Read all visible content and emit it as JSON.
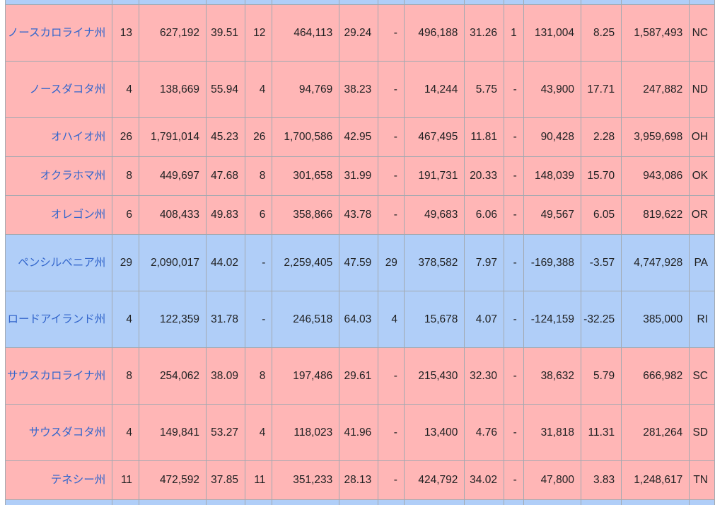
{
  "colors": {
    "republican_row_pink": "#ffb6b6",
    "democratic_row_blue": "#b0cef8",
    "grid_border": "#a2a9b1",
    "state_link": "#3366cc",
    "number_text": "#202122",
    "page_background": "#ffffff"
  },
  "table": {
    "top_partial_row": {
      "row_color": "blue"
    },
    "bottom_partial_row": {
      "row_color": "blue"
    },
    "rows": [
      {
        "state": "ノースカロライナ州",
        "abbr": "NC",
        "row_color": "pink",
        "values": [
          "13",
          "627,192",
          "39.51",
          "12",
          "464,113",
          "29.24",
          "-",
          "496,188",
          "31.26",
          "1",
          "131,004",
          "8.25",
          "1,587,493"
        ]
      },
      {
        "state": "ノースダコタ州",
        "abbr": "ND",
        "row_color": "pink",
        "values": [
          "4",
          "138,669",
          "55.94",
          "4",
          "94,769",
          "38.23",
          "-",
          "14,244",
          "5.75",
          "-",
          "43,900",
          "17.71",
          "247,882"
        ]
      },
      {
        "state": "オハイオ州",
        "abbr": "OH",
        "row_color": "pink",
        "values": [
          "26",
          "1,791,014",
          "45.23",
          "26",
          "1,700,586",
          "42.95",
          "-",
          "467,495",
          "11.81",
          "-",
          "90,428",
          "2.28",
          "3,959,698"
        ]
      },
      {
        "state": "オクラホマ州",
        "abbr": "OK",
        "row_color": "pink",
        "values": [
          "8",
          "449,697",
          "47.68",
          "8",
          "301,658",
          "31.99",
          "-",
          "191,731",
          "20.33",
          "-",
          "148,039",
          "15.70",
          "943,086"
        ]
      },
      {
        "state": "オレゴン州",
        "abbr": "OR",
        "row_color": "pink",
        "values": [
          "6",
          "408,433",
          "49.83",
          "6",
          "358,866",
          "43.78",
          "-",
          "49,683",
          "6.06",
          "-",
          "49,567",
          "6.05",
          "819,622"
        ]
      },
      {
        "state": "ペンシルベニア州",
        "abbr": "PA",
        "row_color": "blue",
        "values": [
          "29",
          "2,090,017",
          "44.02",
          "-",
          "2,259,405",
          "47.59",
          "29",
          "378,582",
          "7.97",
          "-",
          "-169,388",
          "-3.57",
          "4,747,928"
        ]
      },
      {
        "state": "ロードアイランド州",
        "abbr": "RI",
        "row_color": "blue",
        "values": [
          "4",
          "122,359",
          "31.78",
          "-",
          "246,518",
          "64.03",
          "4",
          "15,678",
          "4.07",
          "-",
          "-124,159",
          "-32.25",
          "385,000"
        ]
      },
      {
        "state": "サウスカロライナ州",
        "abbr": "SC",
        "row_color": "pink",
        "values": [
          "8",
          "254,062",
          "38.09",
          "8",
          "197,486",
          "29.61",
          "-",
          "215,430",
          "32.30",
          "-",
          "38,632",
          "5.79",
          "666,982"
        ]
      },
      {
        "state": "サウスダコタ州",
        "abbr": "SD",
        "row_color": "pink",
        "values": [
          "4",
          "149,841",
          "53.27",
          "4",
          "118,023",
          "41.96",
          "-",
          "13,400",
          "4.76",
          "-",
          "31,818",
          "11.31",
          "281,264"
        ]
      },
      {
        "state": "テネシー州",
        "abbr": "TN",
        "row_color": "pink",
        "values": [
          "11",
          "472,592",
          "37.85",
          "11",
          "351,233",
          "28.13",
          "-",
          "424,792",
          "34.02",
          "-",
          "47,800",
          "3.83",
          "1,248,617"
        ]
      }
    ]
  }
}
